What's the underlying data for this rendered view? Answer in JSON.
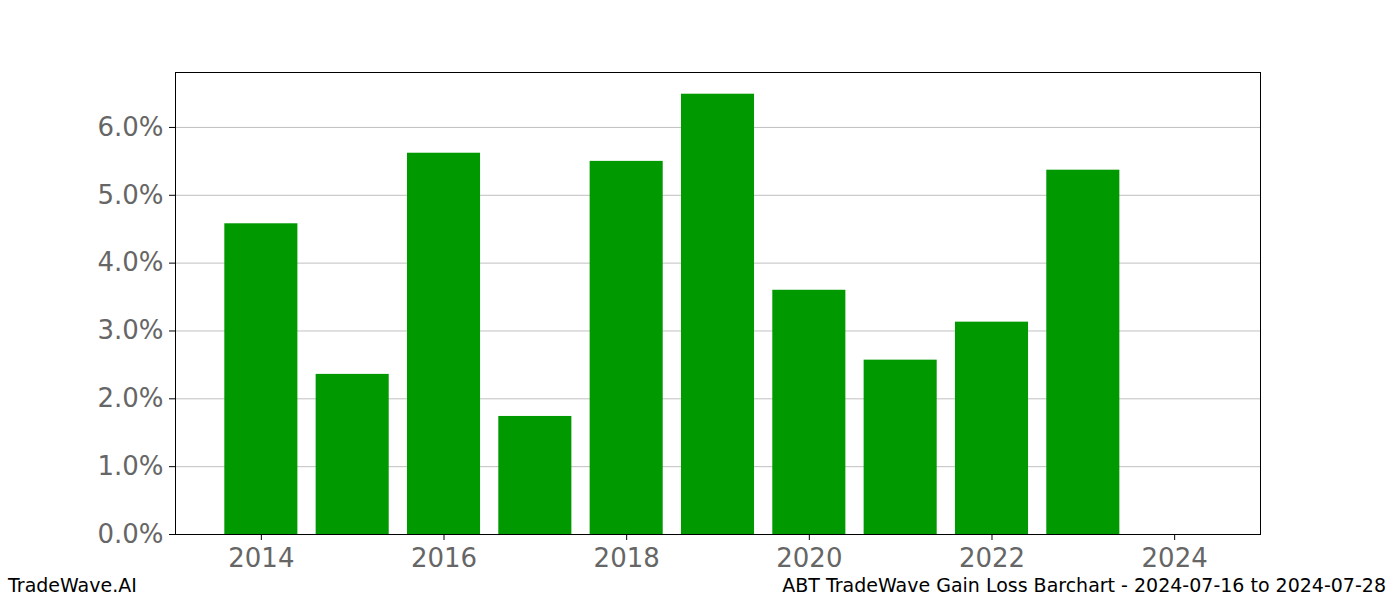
{
  "chart_data": {
    "type": "bar",
    "title": "ABT TradeWave Gain Loss Barchart - 2024-07-16 to 2024-07-28",
    "caption": "TradeWave.AI",
    "x": [
      2014,
      2015,
      2016,
      2017,
      2018,
      2019,
      2020,
      2021,
      2022,
      2023,
      2024
    ],
    "values": [
      4.58,
      2.36,
      5.62,
      1.74,
      5.5,
      6.49,
      3.6,
      2.57,
      3.13,
      5.37,
      0
    ],
    "color": "#009900",
    "xlim": [
      2013.06,
      2024.94
    ],
    "xticks": [
      2014,
      2016,
      2018,
      2020,
      2022,
      2024
    ],
    "ylim": [
      0,
      6.81
    ],
    "yticks": [
      {
        "value": 0,
        "label": "0.0%"
      },
      {
        "value": 1,
        "label": "1.0%"
      },
      {
        "value": 2,
        "label": "2.0%"
      },
      {
        "value": 3,
        "label": "3.0%"
      },
      {
        "value": 4,
        "label": "4.0%"
      },
      {
        "value": 5,
        "label": "5.0%"
      },
      {
        "value": 6,
        "label": "6.0%"
      }
    ],
    "grid": true
  }
}
